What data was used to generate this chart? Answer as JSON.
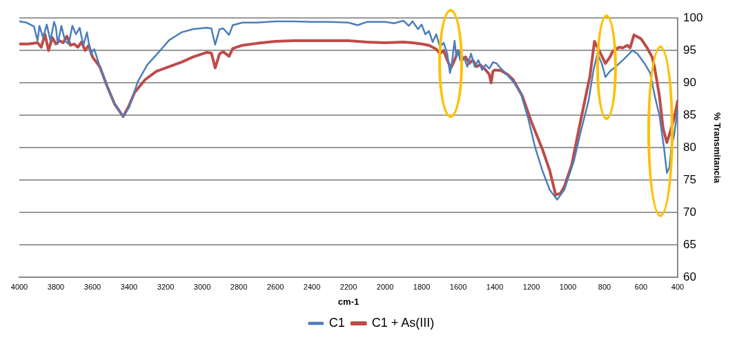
{
  "chart_data": {
    "type": "line",
    "xlabel": "cm-1",
    "ylabel": "% Transmitancia",
    "xlim": [
      4000,
      400
    ],
    "xticks": [
      4000,
      3800,
      3600,
      3400,
      3200,
      3000,
      2800,
      2600,
      2400,
      2200,
      2000,
      1800,
      1600,
      1400,
      1200,
      1000,
      800,
      600,
      400
    ],
    "ylim": [
      60,
      100
    ],
    "yticks": [
      60,
      65,
      70,
      75,
      80,
      85,
      90,
      95,
      100
    ],
    "grid": "y",
    "legend": "bottom",
    "marker": "none",
    "line_style": "solid",
    "series": [
      {
        "name": "C1",
        "color": "#4a7ebb",
        "x": [
          4000,
          3960,
          3920,
          3900,
          3890,
          3870,
          3850,
          3830,
          3810,
          3800,
          3790,
          3770,
          3750,
          3730,
          3710,
          3690,
          3670,
          3650,
          3630,
          3610,
          3590,
          3560,
          3520,
          3480,
          3432,
          3400,
          3352,
          3300,
          3245,
          3180,
          3113,
          3050,
          2977,
          2950,
          2929,
          2905,
          2885,
          2853,
          2833,
          2780,
          2700,
          2600,
          2500,
          2400,
          2300,
          2200,
          2150,
          2100,
          2000,
          1950,
          1900,
          1870,
          1850,
          1820,
          1800,
          1780,
          1760,
          1740,
          1720,
          1700,
          1680,
          1660,
          1645,
          1635,
          1620,
          1610,
          1600,
          1590,
          1570,
          1550,
          1530,
          1510,
          1490,
          1470,
          1450,
          1430,
          1410,
          1390,
          1370,
          1340,
          1300,
          1259,
          1220,
          1179,
          1140,
          1100,
          1059,
          1020,
          967,
          930,
          887,
          860,
          839,
          815,
          795,
          770,
          739,
          700,
          647,
          620,
          579,
          550,
          527,
          500,
          475,
          459,
          445,
          435,
          419,
          400
        ],
        "values": [
          99.5,
          99.3,
          98.7,
          96.5,
          98.8,
          97,
          99,
          96.5,
          99.4,
          98.6,
          96,
          98.8,
          96.5,
          96,
          98.8,
          97.5,
          98.5,
          95.8,
          97.8,
          94.5,
          95.2,
          92.5,
          89.5,
          86.8,
          84.8,
          86.2,
          90.2,
          92.8,
          94.5,
          96.6,
          97.8,
          98.3,
          98.5,
          98.4,
          95.9,
          98.3,
          98.4,
          97.4,
          98.9,
          99.3,
          99.3,
          99.5,
          99.5,
          99.4,
          99.4,
          99.3,
          98.9,
          99.4,
          99.4,
          99.2,
          99.6,
          98.8,
          99.5,
          98.3,
          99,
          97.5,
          98,
          96.3,
          97.5,
          95.5,
          96.2,
          94.5,
          91.5,
          93,
          96.5,
          94,
          95,
          93.5,
          94,
          92.5,
          94.5,
          92.5,
          93.5,
          92,
          92.8,
          92.2,
          93.2,
          93,
          92.3,
          91.5,
          90.2,
          88.5,
          84.8,
          80,
          76.5,
          73.5,
          72,
          73.5,
          78,
          82.5,
          87.3,
          92,
          94.5,
          93,
          90.9,
          91.8,
          92.5,
          93.5,
          95,
          94.5,
          92.9,
          91.5,
          88.2,
          85,
          80,
          76.1,
          77,
          80,
          82,
          86
        ]
      },
      {
        "name": "C1 + As(III)",
        "color": "#be4b48",
        "x": [
          4000,
          3950,
          3900,
          3880,
          3860,
          3840,
          3820,
          3800,
          3780,
          3760,
          3740,
          3720,
          3700,
          3680,
          3660,
          3640,
          3620,
          3600,
          3560,
          3520,
          3480,
          3432,
          3400,
          3370,
          3312,
          3250,
          3180,
          3113,
          3050,
          2977,
          2950,
          2929,
          2905,
          2885,
          2853,
          2833,
          2780,
          2700,
          2600,
          2500,
          2400,
          2300,
          2200,
          2100,
          2000,
          1900,
          1850,
          1800,
          1760,
          1720,
          1700,
          1680,
          1660,
          1640,
          1620,
          1600,
          1580,
          1560,
          1540,
          1520,
          1500,
          1480,
          1450,
          1430,
          1420,
          1410,
          1400,
          1367,
          1330,
          1300,
          1250,
          1200,
          1139,
          1100,
          1067,
          1040,
          1020,
          979,
          950,
          915,
          880,
          855,
          830,
          795,
          770,
          755,
          720,
          700,
          675,
          660,
          639,
          600,
          567,
          540,
          527,
          500,
          480,
          459,
          440,
          420,
          400
        ],
        "values": [
          96,
          96,
          96.2,
          95.5,
          97.5,
          95,
          97,
          96,
          96.5,
          96.2,
          97.2,
          95.8,
          96,
          95.5,
          96.3,
          95,
          95.8,
          94,
          92.5,
          89.5,
          86.8,
          84.8,
          86.5,
          88.5,
          90.5,
          91.8,
          92.5,
          93.2,
          94,
          94.7,
          94.6,
          92.3,
          94.5,
          94.8,
          94.1,
          95.3,
          95.8,
          96.1,
          96.4,
          96.5,
          96.5,
          96.5,
          96.5,
          96.3,
          96.2,
          96.3,
          96.2,
          96,
          95.8,
          95.2,
          94.5,
          95,
          93.5,
          92.3,
          93.5,
          95,
          93.5,
          94,
          93,
          93.5,
          92.5,
          92.8,
          92,
          91.3,
          90,
          91.8,
          92,
          91.9,
          91.3,
          90.5,
          88,
          84,
          79.7,
          76.5,
          72.7,
          73,
          74,
          77.4,
          81.5,
          86.3,
          91,
          96.4,
          95,
          93,
          94,
          94.9,
          95.5,
          95.4,
          95.8,
          95.4,
          97.4,
          96.8,
          95.4,
          94,
          92.5,
          88,
          83,
          80.8,
          82.5,
          84.5,
          87.2
        ]
      }
    ]
  }
}
